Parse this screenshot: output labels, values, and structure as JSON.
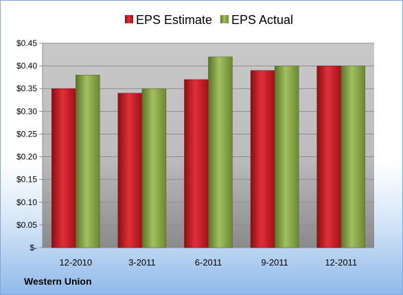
{
  "chart_data": {
    "type": "bar",
    "categories": [
      "12-2010",
      "3-2011",
      "6-2011",
      "9-2011",
      "12-2011"
    ],
    "series": [
      {
        "name": "EPS Estimate",
        "values": [
          0.35,
          0.34,
          0.37,
          0.39,
          0.4
        ],
        "color": "#c0141c"
      },
      {
        "name": "EPS Actual",
        "values": [
          0.38,
          0.35,
          0.42,
          0.4,
          0.4
        ],
        "color": "#7d9a3c"
      }
    ],
    "ylim": [
      0,
      0.45
    ],
    "yticks": [
      0,
      0.05,
      0.1,
      0.15,
      0.2,
      0.25,
      0.3,
      0.35,
      0.4,
      0.45
    ],
    "ytick_labels": [
      "$-",
      "$0.05",
      "$0.10",
      "$0.15",
      "$0.20",
      "$0.25",
      "$0.30",
      "$0.35",
      "$0.40",
      "$0.45"
    ],
    "grid": true,
    "legend_position": "top-center"
  },
  "footer": {
    "company": "Western Union"
  }
}
